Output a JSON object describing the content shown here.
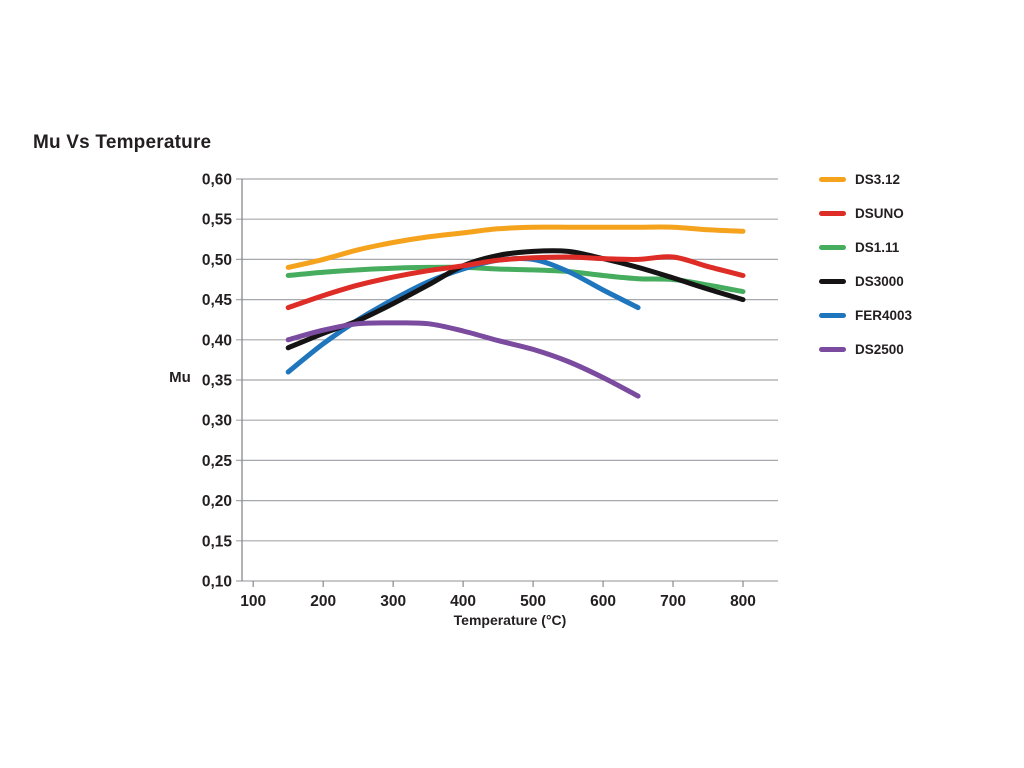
{
  "colors": {
    "text": "#231F20",
    "gridline": "#A6A8AB",
    "axis": "#87898C",
    "background": "#FFFFFF"
  },
  "chart_data": {
    "type": "line",
    "title": "Mu Vs Temperature",
    "xlabel": "Temperature (°C)",
    "ylabel": "Mu",
    "xlim": [
      84,
      850
    ],
    "ylim": [
      0.1,
      0.6
    ],
    "grid": "horizontal-only",
    "legend_position": "right",
    "x_ticks": [
      {
        "value": 100,
        "label": "100"
      },
      {
        "value": 200,
        "label": "200"
      },
      {
        "value": 300,
        "label": "300"
      },
      {
        "value": 400,
        "label": "400"
      },
      {
        "value": 500,
        "label": "500"
      },
      {
        "value": 600,
        "label": "600"
      },
      {
        "value": 700,
        "label": "700"
      },
      {
        "value": 800,
        "label": "800"
      }
    ],
    "y_ticks": [
      {
        "value": 0.6,
        "label": "0,60"
      },
      {
        "value": 0.55,
        "label": "0,55"
      },
      {
        "value": 0.5,
        "label": "0,50"
      },
      {
        "value": 0.45,
        "label": "0,45"
      },
      {
        "value": 0.4,
        "label": "0,40"
      },
      {
        "value": 0.35,
        "label": "0,35"
      },
      {
        "value": 0.3,
        "label": "0,30"
      },
      {
        "value": 0.25,
        "label": "0,25"
      },
      {
        "value": 0.2,
        "label": "0,20"
      },
      {
        "value": 0.15,
        "label": "0,15"
      },
      {
        "value": 0.1,
        "label": "0,10"
      }
    ],
    "series": [
      {
        "name": "DS3.12",
        "color": "#F5A21D",
        "points": [
          [
            150,
            0.49
          ],
          [
            200,
            0.5
          ],
          [
            250,
            0.512
          ],
          [
            300,
            0.521
          ],
          [
            350,
            0.528
          ],
          [
            400,
            0.533
          ],
          [
            450,
            0.538
          ],
          [
            500,
            0.54
          ],
          [
            550,
            0.54
          ],
          [
            600,
            0.54
          ],
          [
            650,
            0.54
          ],
          [
            700,
            0.54
          ],
          [
            750,
            0.537
          ],
          [
            800,
            0.535
          ]
        ]
      },
      {
        "name": "DSUNO",
        "color": "#DE2C26",
        "points": [
          [
            150,
            0.44
          ],
          [
            200,
            0.455
          ],
          [
            250,
            0.468
          ],
          [
            300,
            0.478
          ],
          [
            350,
            0.486
          ],
          [
            400,
            0.492
          ],
          [
            450,
            0.499
          ],
          [
            500,
            0.502
          ],
          [
            550,
            0.503
          ],
          [
            600,
            0.501
          ],
          [
            650,
            0.5
          ],
          [
            700,
            0.503
          ],
          [
            750,
            0.491
          ],
          [
            800,
            0.48
          ]
        ]
      },
      {
        "name": "DS1.11",
        "color": "#46AC5E",
        "points": [
          [
            150,
            0.48
          ],
          [
            200,
            0.484
          ],
          [
            250,
            0.487
          ],
          [
            300,
            0.489
          ],
          [
            350,
            0.49
          ],
          [
            400,
            0.49
          ],
          [
            450,
            0.488
          ],
          [
            500,
            0.487
          ],
          [
            550,
            0.485
          ],
          [
            600,
            0.48
          ],
          [
            650,
            0.476
          ],
          [
            700,
            0.475
          ],
          [
            750,
            0.468
          ],
          [
            800,
            0.46
          ]
        ]
      },
      {
        "name": "DS3000",
        "color": "#151314",
        "points": [
          [
            150,
            0.39
          ],
          [
            200,
            0.408
          ],
          [
            250,
            0.424
          ],
          [
            300,
            0.445
          ],
          [
            350,
            0.468
          ],
          [
            400,
            0.492
          ],
          [
            450,
            0.505
          ],
          [
            500,
            0.51
          ],
          [
            550,
            0.51
          ],
          [
            600,
            0.501
          ],
          [
            650,
            0.49
          ],
          [
            700,
            0.477
          ],
          [
            750,
            0.463
          ],
          [
            800,
            0.45
          ]
        ]
      },
      {
        "name": "FER4003",
        "color": "#1F76BD",
        "points": [
          [
            150,
            0.36
          ],
          [
            200,
            0.395
          ],
          [
            250,
            0.425
          ],
          [
            300,
            0.45
          ],
          [
            350,
            0.472
          ],
          [
            400,
            0.488
          ],
          [
            450,
            0.499
          ],
          [
            500,
            0.5
          ],
          [
            550,
            0.485
          ],
          [
            600,
            0.462
          ],
          [
            650,
            0.44
          ]
        ]
      },
      {
        "name": "DS2500",
        "color": "#7A4B9E",
        "points": [
          [
            150,
            0.4
          ],
          [
            200,
            0.412
          ],
          [
            250,
            0.42
          ],
          [
            300,
            0.421
          ],
          [
            350,
            0.42
          ],
          [
            400,
            0.411
          ],
          [
            450,
            0.399
          ],
          [
            500,
            0.388
          ],
          [
            550,
            0.373
          ],
          [
            600,
            0.353
          ],
          [
            650,
            0.33
          ]
        ]
      }
    ],
    "draw_order": [
      "DS3.12",
      "DS1.11",
      "FER4003",
      "DS3000",
      "DSUNO",
      "DS2500"
    ]
  }
}
